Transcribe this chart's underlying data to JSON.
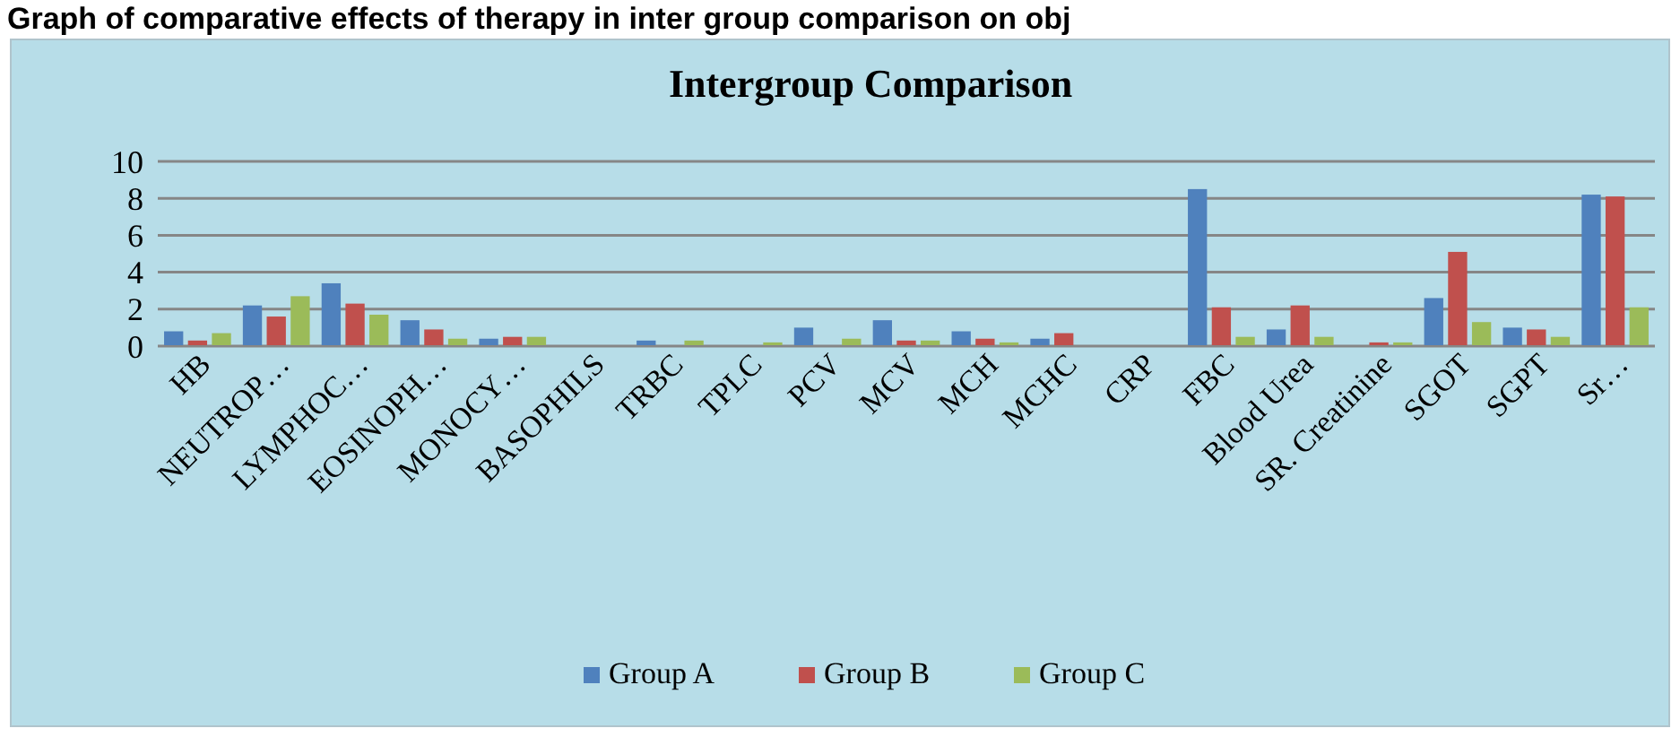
{
  "chart_data": {
    "type": "bar",
    "title": "Intergroup Comparison",
    "annotations": [
      "Graph of comparative effects of therapy in inter group comparison on obj"
    ],
    "categories": [
      "HB",
      "NEUTROP…",
      "LYMPHOC…",
      "EOSINOPH…",
      "MONOCY…",
      "BASOPHILS",
      "TRBC",
      "TPLC",
      "PCV",
      "MCV",
      "MCH",
      "MCHC",
      "CRP",
      "FBC",
      "Blood Urea",
      "SR. Creatinine",
      "SGOT",
      "SGPT",
      "Sr…"
    ],
    "series": [
      {
        "name": "Group A",
        "color": "#4f81bd",
        "values": [
          0.8,
          2.2,
          3.4,
          1.4,
          0.4,
          0,
          0.3,
          0,
          1.0,
          1.4,
          0.8,
          0.4,
          0,
          8.5,
          0.9,
          0,
          2.6,
          1.0,
          8.2
        ]
      },
      {
        "name": "Group B",
        "color": "#c0504d",
        "values": [
          0.3,
          1.6,
          2.3,
          0.9,
          0.5,
          0,
          0,
          0,
          0,
          0.3,
          0.4,
          0.7,
          0,
          2.1,
          2.2,
          0.2,
          5.1,
          0.9,
          8.1
        ]
      },
      {
        "name": "Group C",
        "color": "#9bbb59",
        "values": [
          0.7,
          2.7,
          1.7,
          0.4,
          0.5,
          0,
          0.3,
          0.2,
          0.4,
          0.3,
          0.2,
          0,
          0,
          0.5,
          0.5,
          0.2,
          1.3,
          0.5,
          2.1
        ]
      }
    ],
    "ylim": [
      0,
      10
    ],
    "yticks": [
      0,
      2,
      4,
      6,
      8,
      10
    ],
    "grid": "y",
    "legend": "bottom"
  }
}
